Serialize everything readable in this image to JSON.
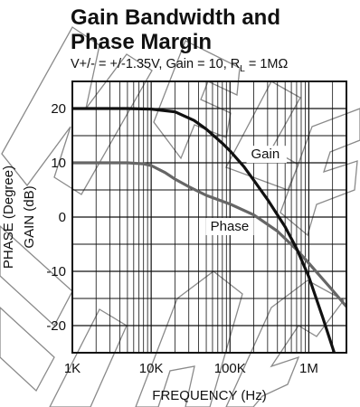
{
  "header": {
    "title_line_1": "Gain Bandwidth and",
    "title_line_2": "Phase Margin",
    "subtitle_prefix": "V+/- = +/-1.35V, Gain = 10, R",
    "subtitle_sub": "L",
    "subtitle_suffix": " = 1MΩ"
  },
  "colors": {
    "gain": "#111111",
    "phase": "#666666",
    "grid": "#111111",
    "watermark": "#8a8a8a"
  },
  "chart_data": {
    "type": "line",
    "title": "Gain Bandwidth and Phase Margin",
    "xlabel": "FREQUENCY (Hz)",
    "ylabel": "GAIN (dB)",
    "ylabel2": "PHASE (Degree)",
    "xscale": "log",
    "xlim": [
      1000,
      3000000
    ],
    "ylim": [
      -25,
      25
    ],
    "x_ticks": [
      {
        "value": 1000,
        "label": "1K"
      },
      {
        "value": 10000,
        "label": "10K"
      },
      {
        "value": 100000,
        "label": "100K"
      },
      {
        "value": 1000000,
        "label": "1M"
      }
    ],
    "y_ticks": [
      {
        "value": 20,
        "label": "20"
      },
      {
        "value": 10,
        "label": "10"
      },
      {
        "value": 0,
        "label": "0"
      },
      {
        "value": -10,
        "label": "-10"
      },
      {
        "value": -20,
        "label": "-20"
      }
    ],
    "grid": true,
    "series": [
      {
        "name": "Gain",
        "points": [
          [
            1000,
            20
          ],
          [
            5000,
            20
          ],
          [
            10000,
            19.9
          ],
          [
            20000,
            19.4
          ],
          [
            35000,
            17.8
          ],
          [
            50000,
            16.2
          ],
          [
            80000,
            13.6
          ],
          [
            100000,
            12.2
          ],
          [
            150000,
            9.3
          ],
          [
            200000,
            6.8
          ],
          [
            300000,
            3.2
          ],
          [
            500000,
            -1.8
          ],
          [
            700000,
            -5.8
          ],
          [
            1000000,
            -11
          ],
          [
            1500000,
            -18.5
          ],
          [
            2100000,
            -25
          ]
        ]
      },
      {
        "name": "Phase",
        "points": [
          [
            1000,
            10
          ],
          [
            5000,
            10
          ],
          [
            8000,
            9.8
          ],
          [
            10000,
            9.5
          ],
          [
            15000,
            8.2
          ],
          [
            20000,
            7
          ],
          [
            30000,
            5.6
          ],
          [
            50000,
            4
          ],
          [
            100000,
            2.4
          ],
          [
            200000,
            0.4
          ],
          [
            400000,
            -2.6
          ],
          [
            700000,
            -6
          ],
          [
            1000000,
            -8.5
          ],
          [
            2000000,
            -13.5
          ],
          [
            3000000,
            -16.5
          ]
        ]
      }
    ]
  }
}
